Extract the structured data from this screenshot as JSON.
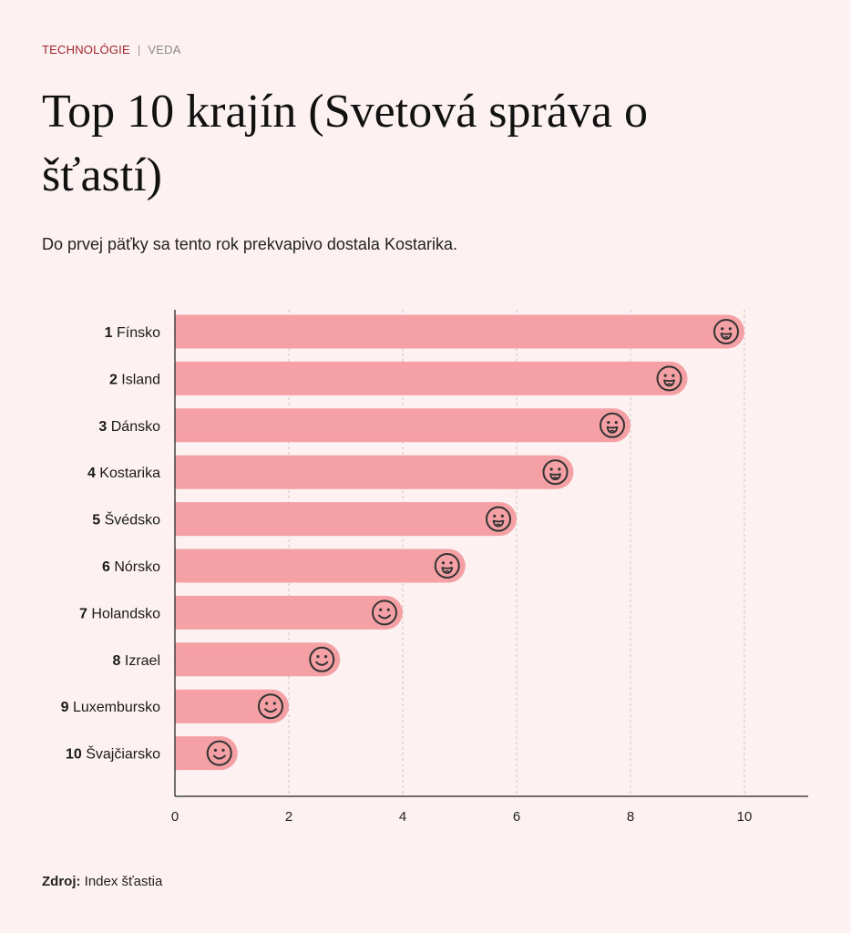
{
  "header": {
    "category": "TECHNOLÓGIE",
    "separator": "|",
    "subcategory": "VEDA"
  },
  "title": "Top 10 krajín (Svetová správa o šťastí)",
  "subtitle": "Do prvej päťky sa tento rok prekvapivo dostala Kostarika.",
  "source": {
    "label": "Zdroj:",
    "text": "Index šťastia"
  },
  "colors": {
    "background": "#fdf1f1",
    "bar": "#f4a0a4",
    "grid": "#cfc3c3",
    "axis": "#444444",
    "accent": "#a3252c"
  },
  "chart_data": {
    "type": "bar",
    "orientation": "horizontal",
    "categories": [
      {
        "rank": "1",
        "name": "Fínsko"
      },
      {
        "rank": "2",
        "name": "Island"
      },
      {
        "rank": "3",
        "name": "Dánsko"
      },
      {
        "rank": "4",
        "name": "Kostarika"
      },
      {
        "rank": "5",
        "name": "Švédsko"
      },
      {
        "rank": "6",
        "name": "Nórsko"
      },
      {
        "rank": "7",
        "name": "Holandsko"
      },
      {
        "rank": "8",
        "name": "Izrael"
      },
      {
        "rank": "9",
        "name": "Luxembursko"
      },
      {
        "rank": "10",
        "name": "Švajčiarsko"
      }
    ],
    "values": [
      10.0,
      9.0,
      8.0,
      7.0,
      6.0,
      5.1,
      4.0,
      2.9,
      2.0,
      1.1
    ],
    "icons": [
      "grin-icon",
      "grin-icon",
      "grin-icon",
      "grin-icon",
      "grin-icon",
      "grin-icon",
      "smile-icon",
      "smile-icon",
      "smile-icon",
      "smile-icon"
    ],
    "xlim": [
      0,
      11.1
    ],
    "xticks": [
      0,
      2,
      4,
      6,
      8,
      10
    ],
    "grid": true,
    "xlabel": "",
    "ylabel": ""
  }
}
